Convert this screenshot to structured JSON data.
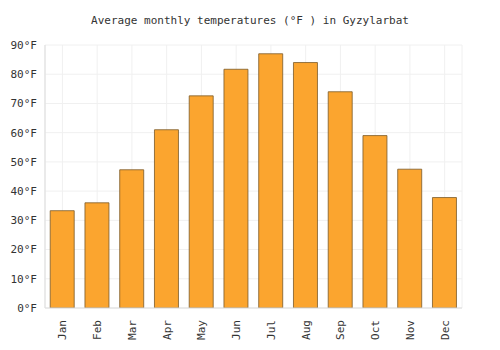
{
  "chart_data": {
    "type": "bar",
    "title": "Average monthly temperatures (°F ) in Gyzylarbat",
    "categories": [
      "Jan",
      "Feb",
      "Mar",
      "Apr",
      "May",
      "Jun",
      "Jul",
      "Aug",
      "Sep",
      "Oct",
      "Nov",
      "Dec"
    ],
    "values": [
      33.3,
      36,
      47.3,
      61,
      72.6,
      81.7,
      87,
      84,
      74,
      59,
      47.5,
      37.8
    ],
    "color": "#fba52f",
    "ylim": [
      0,
      90
    ],
    "yticks": [
      {
        "value": 0,
        "label": "0°F"
      },
      {
        "value": 10,
        "label": "10°F"
      },
      {
        "value": 20,
        "label": "20°F"
      },
      {
        "value": 30,
        "label": "30°F"
      },
      {
        "value": 40,
        "label": "40°F"
      },
      {
        "value": 50,
        "label": "50°F"
      },
      {
        "value": 60,
        "label": "60°F"
      },
      {
        "value": 70,
        "label": "70°F"
      },
      {
        "value": 80,
        "label": "80°F"
      },
      {
        "value": 90,
        "label": "90°F"
      }
    ],
    "grid": true
  }
}
